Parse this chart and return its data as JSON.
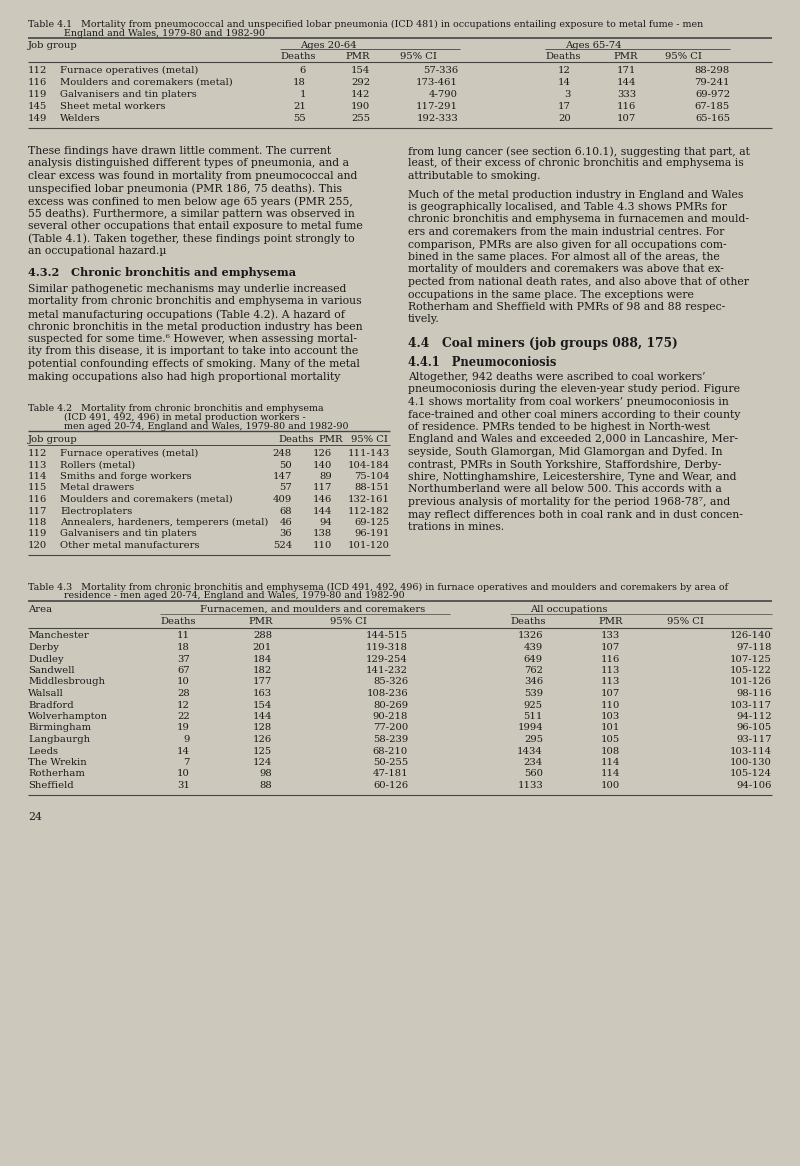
{
  "bg_color": "#ccc8bc",
  "text_color": "#1a1a1a",
  "page_number": "24",
  "table41": {
    "title_line1": "Table 4.1   Mortality from pneumococcal and unspecified lobar pneumonia (ICD 481) in occupations entailing exposure to metal fume - men",
    "title_line2": "            England and Wales, 1979-80 and 1982-90",
    "rows": [
      [
        "112",
        "Furnace operatives (metal)",
        "6",
        "154",
        "57-336",
        "12",
        "171",
        "88-298"
      ],
      [
        "116",
        "Moulders and coremakers (metal)",
        "18",
        "292",
        "173-461",
        "14",
        "144",
        "79-241"
      ],
      [
        "119",
        "Galvanisers and tin platers",
        "1",
        "142",
        "4-790",
        "3",
        "333",
        "69-972"
      ],
      [
        "145",
        "Sheet metal workers",
        "21",
        "190",
        "117-291",
        "17",
        "116",
        "67-185"
      ],
      [
        "149",
        "Welders",
        "55",
        "255",
        "192-333",
        "20",
        "107",
        "65-165"
      ]
    ]
  },
  "table42": {
    "title_line1": "Table 4.2   Mortality from chronic bronchitis and emphysema",
    "title_line2": "            (ICD 491, 492, 496) in metal production workers -",
    "title_line3": "            men aged 20-74, England and Wales, 1979-80 and 1982-90",
    "rows": [
      [
        "112",
        "Furnace operatives (metal)",
        "248",
        "126",
        "111-143"
      ],
      [
        "113",
        "Rollers (metal)",
        "50",
        "140",
        "104-184"
      ],
      [
        "114",
        "Smiths and forge workers",
        "147",
        "89",
        "75-104"
      ],
      [
        "115",
        "Metal drawers",
        "57",
        "117",
        "88-151"
      ],
      [
        "116",
        "Moulders and coremakers (metal)",
        "409",
        "146",
        "132-161"
      ],
      [
        "117",
        "Electroplaters",
        "68",
        "144",
        "112-182"
      ],
      [
        "118",
        "Annealers, hardeners, temperers (metal)",
        "46",
        "94",
        "69-125"
      ],
      [
        "119",
        "Galvanisers and tin platers",
        "36",
        "138",
        "96-191"
      ],
      [
        "120",
        "Other metal manufacturers",
        "524",
        "110",
        "101-120"
      ]
    ]
  },
  "table43": {
    "title_line1": "Table 4.3   Mortality from chronic bronchitis and emphysema (ICD 491, 492, 496) in furnace operatives and moulders and coremakers by area of",
    "title_line2": "            residence - men aged 20-74, England and Wales, 1979-80 and 1982-90",
    "rows": [
      [
        "Manchester",
        "11",
        "288",
        "144-515",
        "1326",
        "133",
        "126-140"
      ],
      [
        "Derby",
        "18",
        "201",
        "119-318",
        "439",
        "107",
        "97-118"
      ],
      [
        "Dudley",
        "37",
        "184",
        "129-254",
        "649",
        "116",
        "107-125"
      ],
      [
        "Sandwell",
        "67",
        "182",
        "141-232",
        "762",
        "113",
        "105-122"
      ],
      [
        "Middlesbrough",
        "10",
        "177",
        "85-326",
        "346",
        "113",
        "101-126"
      ],
      [
        "Walsall",
        "28",
        "163",
        "108-236",
        "539",
        "107",
        "98-116"
      ],
      [
        "Bradford",
        "12",
        "154",
        "80-269",
        "925",
        "110",
        "103-117"
      ],
      [
        "Wolverhampton",
        "22",
        "144",
        "90-218",
        "511",
        "103",
        "94-112"
      ],
      [
        "Birmingham",
        "19",
        "128",
        "77-200",
        "1994",
        "101",
        "96-105"
      ],
      [
        "Langbaurgh",
        "9",
        "126",
        "58-239",
        "295",
        "105",
        "93-117"
      ],
      [
        "Leeds",
        "14",
        "125",
        "68-210",
        "1434",
        "108",
        "103-114"
      ],
      [
        "The Wrekin",
        "7",
        "124",
        "50-255",
        "234",
        "114",
        "100-130"
      ],
      [
        "Rotherham",
        "10",
        "98",
        "47-181",
        "560",
        "114",
        "105-124"
      ],
      [
        "Sheffield",
        "31",
        "88",
        "60-126",
        "1133",
        "100",
        "94-106"
      ]
    ]
  }
}
